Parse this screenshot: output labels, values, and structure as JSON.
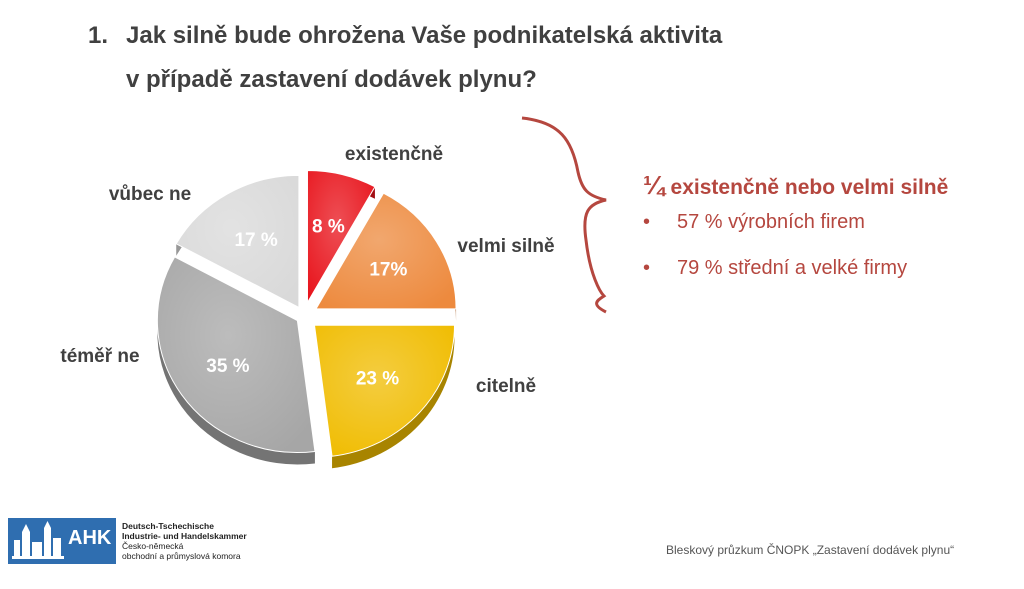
{
  "title": {
    "number": "1.",
    "line1": "Jak silně bude ohrožena Vaše podnikatelská aktivita",
    "line2": "v případě zastavení dodávek plynu?"
  },
  "chart_data": {
    "type": "pie",
    "slices": [
      {
        "category": "existenčně",
        "value": 8,
        "label": "8 %",
        "color": "#e8141c"
      },
      {
        "category": "velmi silně",
        "value": 17,
        "label": "17%",
        "color": "#ed8a3e"
      },
      {
        "category": "citelně",
        "value": 23,
        "label": "23 %",
        "color": "#f0bc00"
      },
      {
        "category": "téměř ne",
        "value": 35,
        "label": "35 %",
        "color": "#a6a6a6"
      },
      {
        "category": "vůbec ne",
        "value": 17,
        "label": "17 %",
        "color": "#d9d9d9"
      }
    ]
  },
  "summary": {
    "fraction": "¼",
    "headline": "existenčně nebo velmi silně",
    "bullets": [
      {
        "marker": "•",
        "text": "57 % výrobních firem"
      },
      {
        "marker": "•",
        "text": "79 % střední a velké firmy"
      }
    ],
    "accent_color": "#b5473f"
  },
  "logo": {
    "brand": "AHK",
    "name_de_1": "Deutsch-Tschechische",
    "name_de_2": "Industrie- und Handelskammer",
    "name_cz_1": "Česko-německá",
    "name_cz_2": "obchodní a průmyslová komora"
  },
  "footer": "Bleskový průzkum ČNOPK „Zastavení dodávek plynu“"
}
